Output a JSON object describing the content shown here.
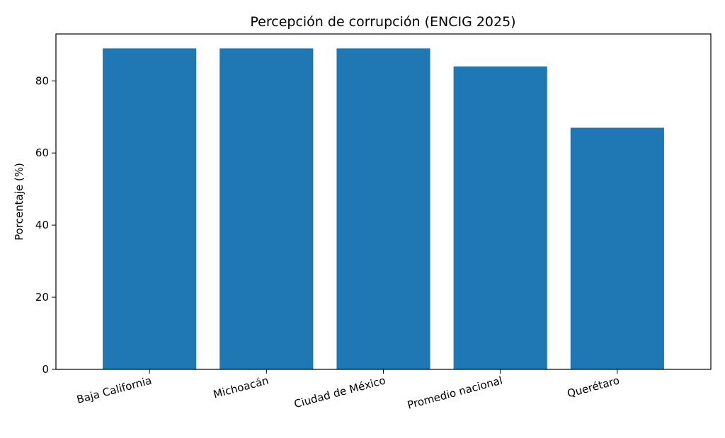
{
  "chart_data": {
    "type": "bar",
    "title": "Percepción de corrupción (ENCIG 2025)",
    "xlabel": "",
    "ylabel": "Porcentaje (%)",
    "categories": [
      "Baja California",
      "Michoacán",
      "Ciudad de México",
      "Promedio nacional",
      "Querétaro"
    ],
    "values": [
      89,
      89,
      89,
      84,
      67
    ],
    "ylim": [
      0,
      93
    ],
    "yticks": [
      0,
      20,
      40,
      60,
      80
    ],
    "bar_color": "#1f77b4",
    "grid": false,
    "legend": false
  }
}
